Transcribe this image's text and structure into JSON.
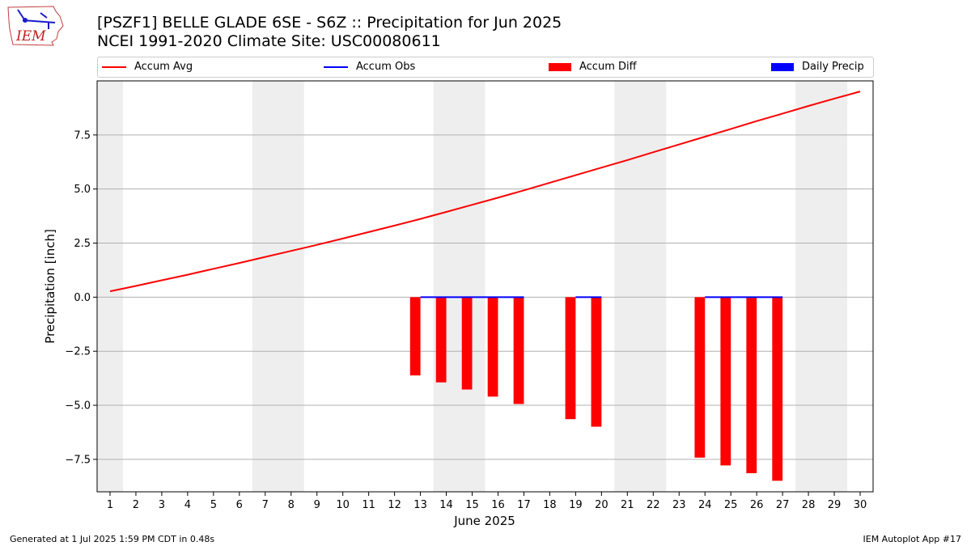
{
  "title_line1": "[PSZF1] BELLE GLADE 6SE - S6Z :: Precipitation for Jun 2025",
  "title_line2": "NCEI 1991-2020 Climate Site: USC00080611",
  "footer_left": "Generated at 1 Jul 2025 1:59 PM CDT in 0.48s",
  "footer_right": "IEM Autoplot App #17",
  "logo_text": "IEM",
  "legend": {
    "accum_avg": "Accum Avg",
    "accum_obs": "Accum Obs",
    "accum_diff": "Accum Diff",
    "daily_precip": "Daily Precip"
  },
  "colors": {
    "accum_avg": "#ff0000",
    "accum_obs": "#0000ff",
    "accum_diff": "#ff0000",
    "daily_precip": "#0000ff",
    "weekend_shade": "#eeeeee",
    "grid": "#b0b0b0"
  },
  "chart_data": {
    "type": "bar",
    "xlabel": "June 2025",
    "ylabel": "Precipitation [inch]",
    "x": [
      1,
      2,
      3,
      4,
      5,
      6,
      7,
      8,
      9,
      10,
      11,
      12,
      13,
      14,
      15,
      16,
      17,
      18,
      19,
      20,
      21,
      22,
      23,
      24,
      25,
      26,
      27,
      28,
      29,
      30
    ],
    "xlim": [
      0.5,
      30.5
    ],
    "ylim": [
      -9.0,
      10.0
    ],
    "yticks": [
      -7.5,
      -5.0,
      -2.5,
      0.0,
      2.5,
      5.0,
      7.5
    ],
    "grid": "y",
    "legend_position": "top",
    "weekend_shading": [
      [
        0.5,
        1.5
      ],
      [
        6.5,
        8.5
      ],
      [
        13.5,
        15.5
      ],
      [
        20.5,
        22.5
      ],
      [
        27.5,
        29.5
      ]
    ],
    "series": [
      {
        "name": "Accum Avg",
        "kind": "line",
        "x": [
          1,
          2,
          3,
          4,
          5,
          6,
          7,
          8,
          9,
          10,
          11,
          12,
          13,
          14,
          15,
          16,
          17,
          18,
          19,
          20,
          21,
          22,
          23,
          24,
          25,
          26,
          27,
          28,
          29,
          30
        ],
        "values": [
          0.27,
          0.52,
          0.78,
          1.04,
          1.31,
          1.58,
          1.86,
          2.14,
          2.42,
          2.71,
          3.01,
          3.31,
          3.62,
          3.94,
          4.27,
          4.6,
          4.94,
          5.29,
          5.64,
          5.99,
          6.34,
          6.7,
          7.06,
          7.42,
          7.78,
          8.14,
          8.49,
          8.84,
          9.18,
          9.51
        ]
      },
      {
        "name": "Accum Obs",
        "kind": "line",
        "segments": [
          {
            "x": [
              13,
              14,
              15,
              16,
              17
            ],
            "values": [
              0.0,
              0.0,
              0.0,
              0.0,
              0.0
            ]
          },
          {
            "x": [
              19,
              20
            ],
            "values": [
              0.0,
              0.0
            ]
          },
          {
            "x": [
              24,
              25,
              26,
              27
            ],
            "values": [
              0.0,
              0.0,
              0.0,
              0.0
            ]
          }
        ]
      },
      {
        "name": "Accum Diff",
        "kind": "bar",
        "x": [
          13,
          14,
          15,
          16,
          17,
          19,
          20,
          24,
          25,
          26,
          27
        ],
        "values": [
          -3.62,
          -3.94,
          -4.27,
          -4.6,
          -4.94,
          -5.64,
          -5.99,
          -7.42,
          -7.78,
          -8.14,
          -8.49
        ]
      },
      {
        "name": "Daily Precip",
        "kind": "bar",
        "x": [],
        "values": []
      }
    ]
  }
}
